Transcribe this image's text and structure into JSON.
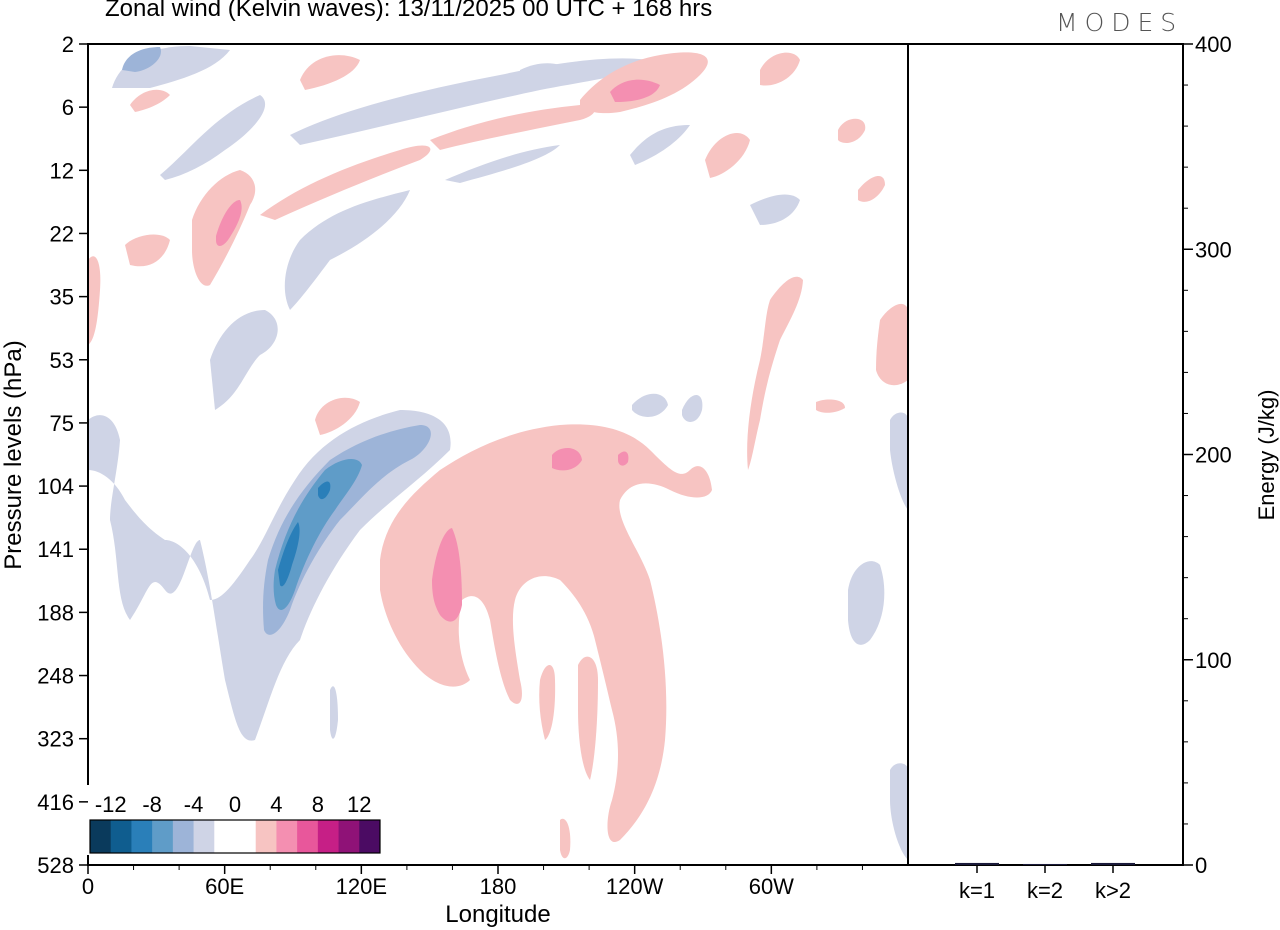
{
  "title": "Zonal wind (Kelvin waves):  13/11/2025  00 UTC  + 168 hrs",
  "logo": "MODES",
  "chart_data": [
    {
      "type": "heatmap",
      "title": "Zonal wind (Kelvin waves)",
      "xlabel": "Longitude",
      "ylabel": "Pressure levels (hPa)",
      "x_ticks": [
        "0",
        "60E",
        "120E",
        "180",
        "120W",
        "60W"
      ],
      "x_tick_lon": [
        0,
        60,
        120,
        180,
        240,
        300
      ],
      "xlim": [
        0,
        360
      ],
      "y_ticks": [
        "2",
        "6",
        "12",
        "22",
        "35",
        "53",
        "75",
        "104",
        "141",
        "188",
        "248",
        "323",
        "416",
        "528"
      ],
      "colorbar": {
        "labels": [
          "-12",
          "-8",
          "-4",
          "0",
          "4",
          "8",
          "12"
        ],
        "colors": [
          "#0a3a5c",
          "#0f5d8f",
          "#2a7fb9",
          "#5f9cc8",
          "#9db4d8",
          "#cfd4e6",
          "#ffffff",
          "#ffffff",
          "#f7c4c2",
          "#f48fb1",
          "#e8579b",
          "#c61f86",
          "#8f1277",
          "#4b0b63"
        ]
      },
      "features": [
        {
          "sign": "negative",
          "lon_range": [
            75,
            145
          ],
          "levels": "75-248",
          "peak": -12
        },
        {
          "sign": "positive",
          "lon_range": [
            130,
            250
          ],
          "levels": "75-528",
          "peak": 8
        },
        {
          "sign": "positive",
          "lon_range": [
            45,
            65
          ],
          "levels": "12-35",
          "peak": 8
        },
        {
          "sign": "positive",
          "lon_range": [
            225,
            255
          ],
          "levels": "2-6",
          "peak": 8
        }
      ]
    },
    {
      "type": "bar",
      "ylabel": "Energy (J/kg)",
      "categories": [
        "k=1",
        "k=2",
        "k>2"
      ],
      "values": [
        1,
        0.5,
        1
      ],
      "ylim": [
        0,
        400
      ],
      "y_ticks": [
        "0",
        "100",
        "200",
        "300",
        "400"
      ],
      "bar_color": "#1a1a3a"
    }
  ]
}
